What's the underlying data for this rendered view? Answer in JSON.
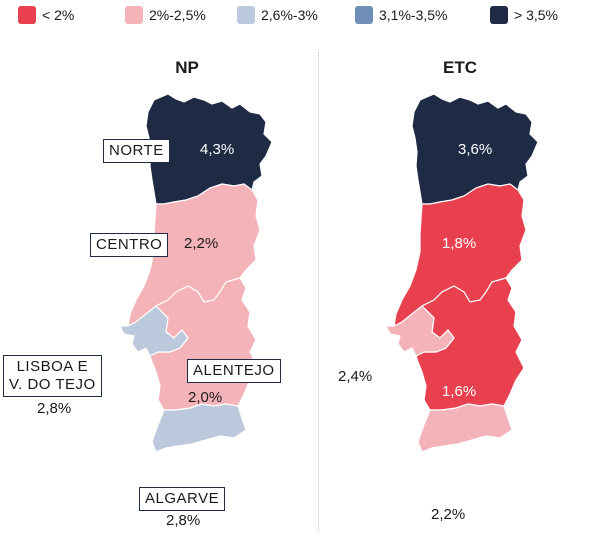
{
  "legend": [
    {
      "label": "< 2%",
      "color": "#e8404f"
    },
    {
      "label": "2%-2,5%",
      "color": "#f4b3b8"
    },
    {
      "label": "2,6%-3%",
      "color": "#bcc9dd"
    },
    {
      "label": "3,1%-3,5%",
      "color": "#6f8fb8"
    },
    {
      "label": "> 3,5%",
      "color": "#1f2a44"
    }
  ],
  "maps": {
    "np": {
      "title": "NP",
      "regions": {
        "norte": {
          "name": "NORTE",
          "value": "4,3%",
          "color": "#1f2a44"
        },
        "centro": {
          "name": "CENTRO",
          "value": "2,2%",
          "color": "#f4b3b8"
        },
        "lisboa": {
          "name_line1": "LISBOA E",
          "name_line2": "V. DO TEJO",
          "value": "2,8%",
          "color": "#bcc9dd"
        },
        "alentejo": {
          "name": "ALENTEJO",
          "value": "2,0%",
          "color": "#f4b3b8"
        },
        "algarve": {
          "name": "ALGARVE",
          "value": "2,8%",
          "color": "#bcc9dd"
        }
      }
    },
    "etc": {
      "title": "ETC",
      "regions": {
        "norte": {
          "value": "3,6%",
          "color": "#1f2a44"
        },
        "centro": {
          "value": "1,8%",
          "color": "#e8404f"
        },
        "lisboa": {
          "value": "2,4%",
          "color": "#f4b3b8"
        },
        "alentejo": {
          "value": "1,6%",
          "color": "#e8404f"
        },
        "algarve": {
          "value": "2,2%",
          "color": "#f4b3b8"
        }
      }
    }
  }
}
